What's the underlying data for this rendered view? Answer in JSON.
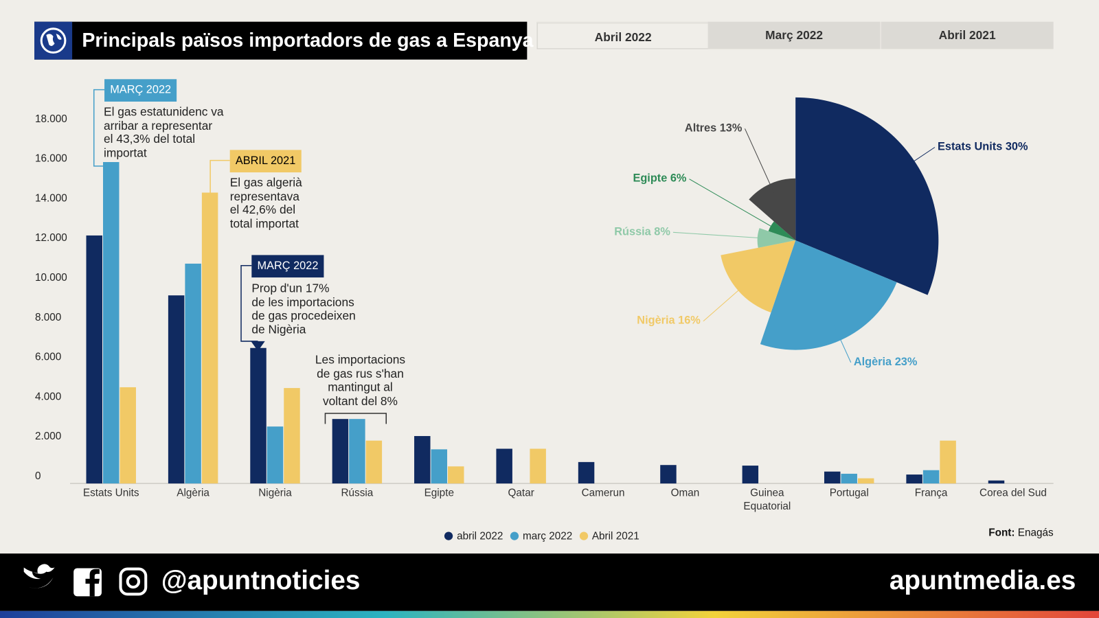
{
  "title": "Principals països importadors de gas a Espanya",
  "tabs": [
    "Abril 2022",
    "Març 2022",
    "Abril 2021"
  ],
  "chart_data": [
    {
      "type": "bar",
      "categories": [
        "Estats Units",
        "Algèria",
        "Nigèria",
        "Rússia",
        "Egipte",
        "Qatar",
        "Camerun",
        "Oman",
        "Guinea Equatorial",
        "Portugal",
        "França",
        "Corea del Sud"
      ],
      "series": [
        {
          "name": "abril 2022",
          "color": "#102a60",
          "values": [
            12500,
            9480,
            6830,
            3250,
            2390,
            1750,
            1080,
            930,
            900,
            600,
            450,
            150
          ]
        },
        {
          "name": "març 2022",
          "color": "#459fc9",
          "values": [
            16200,
            11080,
            2870,
            3250,
            1720,
            0,
            0,
            0,
            0,
            490,
            670,
            0
          ]
        },
        {
          "name": "Abril 2021",
          "color": "#f1c966",
          "values": [
            4850,
            14660,
            4810,
            2160,
            860,
            1750,
            0,
            0,
            0,
            260,
            2160,
            0
          ]
        }
      ],
      "ylim": [
        0,
        18400
      ],
      "yticks": [
        0,
        {
          "value": 2000,
          "label": "2.000"
        },
        {
          "value": 4000,
          "label": "4.000"
        },
        {
          "value": 6000,
          "label": "6.000"
        },
        {
          "value": 8000,
          "label": "8.000"
        },
        {
          "value": 10000,
          "label": "10.000"
        },
        {
          "value": 12000,
          "label": "12.000"
        },
        {
          "value": 14000,
          "label": "14.000"
        },
        {
          "value": 16000,
          "label": "16.000"
        },
        {
          "value": 18000,
          "label": "18.000"
        }
      ],
      "grid": false
    },
    {
      "type": "rose",
      "categories": [
        "Estats Units",
        "Algèria",
        "Nigèria",
        "Rússia",
        "Egipte",
        "Altres"
      ],
      "values": [
        30,
        23,
        16,
        8,
        6,
        13
      ],
      "value_labels": [
        "30%",
        "23%",
        "16%",
        "8%",
        "6%",
        "13%"
      ],
      "colors": [
        "#102a60",
        "#459fc9",
        "#f1c966",
        "#8fc9a8",
        "#2e8b57",
        "#474747"
      ]
    }
  ],
  "annotations": [
    {
      "tag": "MARÇ 2022",
      "lines": [
        "El gas estatunidenc va",
        "arribar a representar",
        "el 43,3% del total",
        "importat"
      ]
    },
    {
      "tag": "ABRIL 2021",
      "lines": [
        "El gas algerià",
        "representava",
        "el 42,6% del",
        "total importat"
      ]
    },
    {
      "tag": "MARÇ 2022",
      "lines": [
        "Prop d'un 17%",
        "de les importacions",
        "de gas procedeixen",
        "de Nigèria"
      ]
    },
    {
      "lines": [
        "Les importacions",
        "de gas rus s'han",
        "mantingut al",
        "voltant del 8%"
      ]
    }
  ],
  "source": {
    "label": "Font:",
    "text": "Enagás"
  },
  "footer": {
    "handle": "@apuntnoticies",
    "site": "apuntmedia.es"
  }
}
